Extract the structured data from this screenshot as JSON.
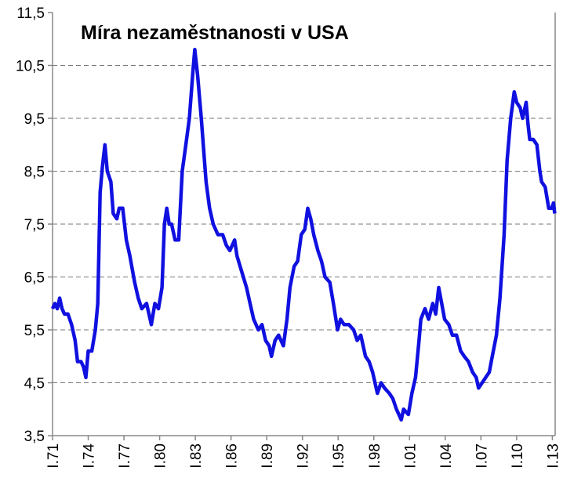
{
  "chart_data": {
    "type": "line",
    "title": "Míra nezaměstnanosti v USA",
    "xlabel": "",
    "ylabel": "",
    "ylim": [
      3.5,
      11.5
    ],
    "xlim": [
      1971,
      2013.2
    ],
    "grid": true,
    "yticks": [
      "3,5",
      "4,5",
      "5,5",
      "6,5",
      "7,5",
      "8,5",
      "9,5",
      "10,5",
      "11,5"
    ],
    "ytick_values": [
      3.5,
      4.5,
      5.5,
      6.5,
      7.5,
      8.5,
      9.5,
      10.5,
      11.5
    ],
    "xticks": [
      "I.71",
      "I.74",
      "I.77",
      "I.80",
      "I.83",
      "I.86",
      "I.89",
      "I.92",
      "I.95",
      "I.98",
      "I.01",
      "I.04",
      "I.07",
      "I.10",
      "I.13"
    ],
    "xtick_values": [
      1971,
      1974,
      1977,
      1980,
      1983,
      1986,
      1989,
      1992,
      1995,
      1998,
      2001,
      2004,
      2007,
      2010,
      2013
    ],
    "color": "#1010e0",
    "series": [
      {
        "name": "Míra nezaměstnanosti",
        "points": [
          [
            1971.0,
            5.9
          ],
          [
            1971.2,
            6.0
          ],
          [
            1971.4,
            5.9
          ],
          [
            1971.6,
            6.1
          ],
          [
            1971.8,
            5.9
          ],
          [
            1972.0,
            5.8
          ],
          [
            1972.3,
            5.8
          ],
          [
            1972.6,
            5.6
          ],
          [
            1972.9,
            5.3
          ],
          [
            1973.1,
            4.9
          ],
          [
            1973.4,
            4.9
          ],
          [
            1973.6,
            4.8
          ],
          [
            1973.8,
            4.6
          ],
          [
            1974.0,
            5.1
          ],
          [
            1974.3,
            5.1
          ],
          [
            1974.6,
            5.5
          ],
          [
            1974.8,
            6.0
          ],
          [
            1975.0,
            8.1
          ],
          [
            1975.2,
            8.6
          ],
          [
            1975.4,
            9.0
          ],
          [
            1975.6,
            8.5
          ],
          [
            1975.9,
            8.3
          ],
          [
            1976.1,
            7.7
          ],
          [
            1976.4,
            7.6
          ],
          [
            1976.6,
            7.8
          ],
          [
            1976.9,
            7.8
          ],
          [
            1977.2,
            7.2
          ],
          [
            1977.5,
            6.9
          ],
          [
            1977.9,
            6.4
          ],
          [
            1978.2,
            6.1
          ],
          [
            1978.5,
            5.9
          ],
          [
            1978.9,
            6.0
          ],
          [
            1979.3,
            5.6
          ],
          [
            1979.6,
            6.0
          ],
          [
            1979.9,
            5.9
          ],
          [
            1980.2,
            6.3
          ],
          [
            1980.4,
            7.5
          ],
          [
            1980.6,
            7.8
          ],
          [
            1980.8,
            7.5
          ],
          [
            1981.0,
            7.5
          ],
          [
            1981.3,
            7.2
          ],
          [
            1981.6,
            7.2
          ],
          [
            1981.9,
            8.5
          ],
          [
            1982.2,
            9.0
          ],
          [
            1982.5,
            9.5
          ],
          [
            1982.8,
            10.4
          ],
          [
            1982.95,
            10.8
          ],
          [
            1983.2,
            10.3
          ],
          [
            1983.5,
            9.5
          ],
          [
            1983.9,
            8.3
          ],
          [
            1984.2,
            7.8
          ],
          [
            1984.5,
            7.5
          ],
          [
            1984.9,
            7.3
          ],
          [
            1985.3,
            7.3
          ],
          [
            1985.6,
            7.1
          ],
          [
            1985.9,
            7.0
          ],
          [
            1986.3,
            7.2
          ],
          [
            1986.5,
            6.9
          ],
          [
            1986.9,
            6.6
          ],
          [
            1987.3,
            6.3
          ],
          [
            1987.6,
            6.0
          ],
          [
            1987.9,
            5.7
          ],
          [
            1988.3,
            5.5
          ],
          [
            1988.6,
            5.6
          ],
          [
            1988.9,
            5.3
          ],
          [
            1989.2,
            5.2
          ],
          [
            1989.4,
            5.0
          ],
          [
            1989.7,
            5.3
          ],
          [
            1990.0,
            5.4
          ],
          [
            1990.4,
            5.2
          ],
          [
            1990.7,
            5.7
          ],
          [
            1990.95,
            6.3
          ],
          [
            1991.3,
            6.7
          ],
          [
            1991.6,
            6.8
          ],
          [
            1991.9,
            7.3
          ],
          [
            1992.2,
            7.4
          ],
          [
            1992.45,
            7.8
          ],
          [
            1992.7,
            7.6
          ],
          [
            1992.95,
            7.3
          ],
          [
            1993.3,
            7.0
          ],
          [
            1993.6,
            6.8
          ],
          [
            1993.9,
            6.5
          ],
          [
            1994.3,
            6.4
          ],
          [
            1994.6,
            6.0
          ],
          [
            1994.95,
            5.5
          ],
          [
            1995.2,
            5.7
          ],
          [
            1995.5,
            5.6
          ],
          [
            1995.9,
            5.6
          ],
          [
            1996.3,
            5.5
          ],
          [
            1996.6,
            5.3
          ],
          [
            1996.9,
            5.4
          ],
          [
            1997.3,
            5.0
          ],
          [
            1997.6,
            4.9
          ],
          [
            1997.9,
            4.7
          ],
          [
            1998.3,
            4.3
          ],
          [
            1998.6,
            4.5
          ],
          [
            1998.9,
            4.4
          ],
          [
            1999.3,
            4.3
          ],
          [
            1999.6,
            4.2
          ],
          [
            1999.9,
            4.0
          ],
          [
            2000.3,
            3.8
          ],
          [
            2000.5,
            4.0
          ],
          [
            2000.9,
            3.9
          ],
          [
            2001.2,
            4.3
          ],
          [
            2001.5,
            4.6
          ],
          [
            2001.8,
            5.3
          ],
          [
            2001.95,
            5.7
          ],
          [
            2002.3,
            5.9
          ],
          [
            2002.6,
            5.7
          ],
          [
            2002.95,
            6.0
          ],
          [
            2003.2,
            5.8
          ],
          [
            2003.45,
            6.3
          ],
          [
            2003.7,
            6.0
          ],
          [
            2003.95,
            5.7
          ],
          [
            2004.3,
            5.6
          ],
          [
            2004.6,
            5.4
          ],
          [
            2004.95,
            5.4
          ],
          [
            2005.3,
            5.1
          ],
          [
            2005.6,
            5.0
          ],
          [
            2005.95,
            4.9
          ],
          [
            2006.3,
            4.7
          ],
          [
            2006.6,
            4.6
          ],
          [
            2006.8,
            4.4
          ],
          [
            2007.1,
            4.5
          ],
          [
            2007.4,
            4.6
          ],
          [
            2007.7,
            4.7
          ],
          [
            2007.95,
            5.0
          ],
          [
            2008.3,
            5.4
          ],
          [
            2008.6,
            6.1
          ],
          [
            2008.95,
            7.3
          ],
          [
            2009.2,
            8.7
          ],
          [
            2009.5,
            9.5
          ],
          [
            2009.8,
            10.0
          ],
          [
            2010.0,
            9.8
          ],
          [
            2010.3,
            9.7
          ],
          [
            2010.5,
            9.5
          ],
          [
            2010.8,
            9.8
          ],
          [
            2010.95,
            9.4
          ],
          [
            2011.1,
            9.1
          ],
          [
            2011.4,
            9.1
          ],
          [
            2011.7,
            9.0
          ],
          [
            2011.95,
            8.5
          ],
          [
            2012.1,
            8.3
          ],
          [
            2012.4,
            8.2
          ],
          [
            2012.7,
            7.8
          ],
          [
            2012.95,
            7.8
          ],
          [
            2013.1,
            7.9
          ],
          [
            2013.2,
            7.7
          ]
        ]
      }
    ]
  }
}
